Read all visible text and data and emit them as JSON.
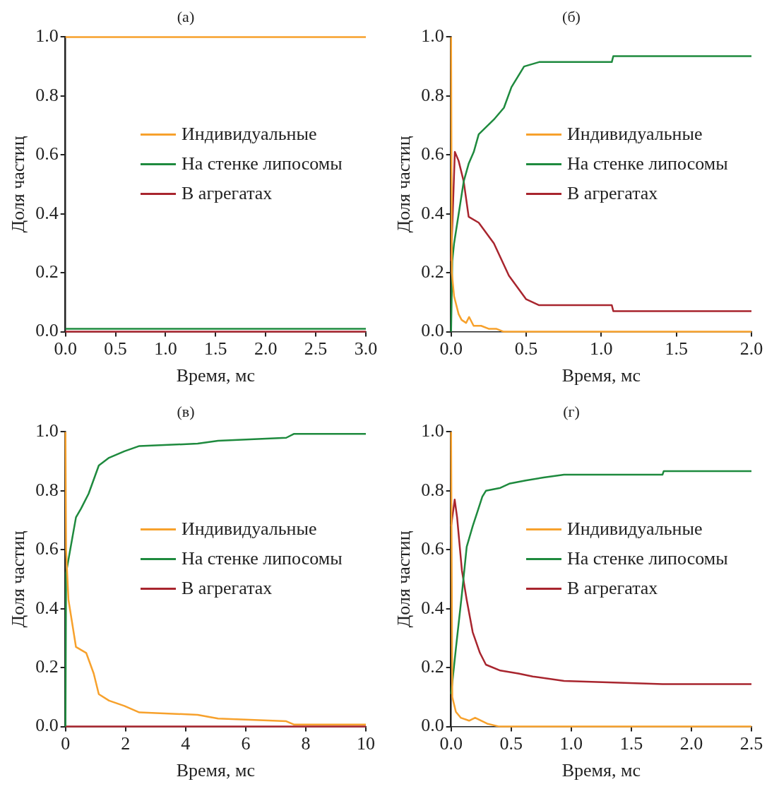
{
  "chart_data": [
    {
      "type": "line",
      "title": "(а)",
      "xlabel": "Время, мс",
      "ylabel": "Доля частиц",
      "xlim": [
        0,
        3
      ],
      "ylim": [
        0,
        1
      ],
      "xticks": [
        {
          "value": 0,
          "label": "0.0"
        },
        {
          "value": 0.5,
          "label": "0.5"
        },
        {
          "value": 1,
          "label": "1.0"
        },
        {
          "value": 1.5,
          "label": "1.5"
        },
        {
          "value": 2,
          "label": "2.0"
        },
        {
          "value": 2.5,
          "label": "2.5"
        },
        {
          "value": 3,
          "label": "3.0"
        }
      ],
      "yticks": [
        {
          "value": 0,
          "label": "0.0"
        },
        {
          "value": 0.2,
          "label": "0.2"
        },
        {
          "value": 0.4,
          "label": "0.4"
        },
        {
          "value": 0.6,
          "label": "0.6"
        },
        {
          "value": 0.8,
          "label": "0.8"
        },
        {
          "value": 1,
          "label": "1.0"
        }
      ],
      "grid": false,
      "legend": "right",
      "marker": "none",
      "line_style": "solid",
      "series": [
        {
          "name": "Индивидуальные",
          "color": "#f7a12c",
          "x": [
            0,
            3
          ],
          "values": [
            1,
            1
          ]
        },
        {
          "name": "На стенке липосомы",
          "color": "#1e8a3e",
          "x": [
            0,
            3
          ],
          "values": [
            0.01,
            0.01
          ]
        },
        {
          "name": "В агрегатах",
          "color": "#a8252e",
          "x": [
            0,
            3
          ],
          "values": [
            0,
            0
          ]
        }
      ]
    },
    {
      "type": "line",
      "title": "(б)",
      "xlabel": "Время, мс",
      "ylabel": "Доля частиц",
      "xlim": [
        0,
        2
      ],
      "ylim": [
        0,
        1
      ],
      "xticks": [
        {
          "value": 0,
          "label": "0.0"
        },
        {
          "value": 0.5,
          "label": "0.5"
        },
        {
          "value": 1,
          "label": "1.0"
        },
        {
          "value": 1.5,
          "label": "1.5"
        },
        {
          "value": 2,
          "label": "2.0"
        }
      ],
      "yticks": [
        {
          "value": 0,
          "label": "0.0"
        },
        {
          "value": 0.2,
          "label": "0.2"
        },
        {
          "value": 0.4,
          "label": "0.4"
        },
        {
          "value": 0.6,
          "label": "0.6"
        },
        {
          "value": 0.8,
          "label": "0.8"
        },
        {
          "value": 1,
          "label": "1.0"
        }
      ],
      "grid": false,
      "legend": "right",
      "marker": "none",
      "line_style": "solid",
      "series": [
        {
          "name": "Индивидуальные",
          "color": "#f7a12c",
          "x": [
            0,
            0.005,
            0.02,
            0.05,
            0.07,
            0.1,
            0.12,
            0.15,
            0.2,
            0.25,
            0.3,
            0.35,
            0.5,
            0.75,
            1.5,
            2
          ],
          "values": [
            1,
            0.2,
            0.12,
            0.06,
            0.04,
            0.03,
            0.05,
            0.02,
            0.02,
            0.01,
            0.01,
            0,
            0,
            0,
            0,
            0
          ]
        },
        {
          "name": "На стенке липосомы",
          "color": "#1e8a3e",
          "x": [
            0,
            0.008,
            0.02,
            0.084,
            0.117,
            0.151,
            0.184,
            0.285,
            0.352,
            0.402,
            0.486,
            0.586,
            1.07,
            1.08,
            2
          ],
          "values": [
            0,
            0.24,
            0.3,
            0.51,
            0.57,
            0.61,
            0.67,
            0.72,
            0.76,
            0.83,
            0.9,
            0.915,
            0.915,
            0.935,
            0.935
          ]
        },
        {
          "name": "В агрегатах",
          "color": "#a8252e",
          "x": [
            0,
            0.025,
            0.05,
            0.084,
            0.117,
            0.184,
            0.285,
            0.385,
            0.5,
            0.586,
            1.07,
            1.08,
            2
          ],
          "values": [
            0.24,
            0.61,
            0.58,
            0.51,
            0.39,
            0.37,
            0.3,
            0.19,
            0.11,
            0.09,
            0.09,
            0.07,
            0.07
          ]
        }
      ]
    },
    {
      "type": "line",
      "title": "(в)",
      "xlabel": "Время, мс",
      "ylabel": "Доля частиц",
      "xlim": [
        0,
        10
      ],
      "ylim": [
        0,
        1
      ],
      "xticks": [
        0,
        2,
        4,
        6,
        8,
        10
      ],
      "yticks": [
        {
          "value": 0,
          "label": "0.0"
        },
        {
          "value": 0.2,
          "label": "0.2"
        },
        {
          "value": 0.4,
          "label": "0.4"
        },
        {
          "value": 0.6,
          "label": "0.6"
        },
        {
          "value": 0.8,
          "label": "0.8"
        },
        {
          "value": 1,
          "label": "1.0"
        }
      ],
      "grid": false,
      "legend": "right",
      "marker": "none",
      "line_style": "solid",
      "series": [
        {
          "name": "Индивидуальные",
          "color": "#f7a12c",
          "x": [
            0,
            0.02,
            0.1,
            0.35,
            0.69,
            0.94,
            1.11,
            1.45,
            1.96,
            2.46,
            4.4,
            5.08,
            7.35,
            7.6,
            10
          ],
          "values": [
            1,
            0.6,
            0.43,
            0.27,
            0.25,
            0.18,
            0.11,
            0.088,
            0.07,
            0.048,
            0.04,
            0.027,
            0.018,
            0.007,
            0.007
          ]
        },
        {
          "name": "На стенке липосомы",
          "color": "#1e8a3e",
          "x": [
            0,
            0.02,
            0.14,
            0.35,
            0.52,
            0.77,
            1.11,
            1.45,
            1.96,
            2.46,
            4.4,
            5.08,
            7.35,
            7.6,
            10
          ],
          "values": [
            0,
            0.52,
            0.59,
            0.71,
            0.74,
            0.79,
            0.886,
            0.912,
            0.934,
            0.952,
            0.96,
            0.97,
            0.98,
            0.993,
            0.993
          ]
        },
        {
          "name": "В агрегатах",
          "color": "#a8252e",
          "x": [
            0,
            10
          ],
          "values": [
            0,
            0
          ]
        }
      ]
    },
    {
      "type": "line",
      "title": "(г)",
      "xlabel": "Время, мс",
      "ylabel": "Доля частиц",
      "xlim": [
        0,
        2.5
      ],
      "ylim": [
        0,
        1
      ],
      "xticks": [
        {
          "value": 0,
          "label": "0.0"
        },
        {
          "value": 0.5,
          "label": "0.5"
        },
        {
          "value": 1,
          "label": "1.0"
        },
        {
          "value": 1.5,
          "label": "1.5"
        },
        {
          "value": 2,
          "label": "2.0"
        },
        {
          "value": 2.5,
          "label": "2.5"
        }
      ],
      "yticks": [
        {
          "value": 0,
          "label": "0.0"
        },
        {
          "value": 0.2,
          "label": "0.2"
        },
        {
          "value": 0.4,
          "label": "0.4"
        },
        {
          "value": 0.6,
          "label": "0.6"
        },
        {
          "value": 0.8,
          "label": "0.8"
        },
        {
          "value": 1,
          "label": "1.0"
        }
      ],
      "grid": false,
      "legend": "right",
      "marker": "none",
      "line_style": "solid",
      "series": [
        {
          "name": "Индивидуальные",
          "color": "#f7a12c",
          "x": [
            0,
            0.01,
            0.04,
            0.08,
            0.15,
            0.2,
            0.3,
            0.4,
            0.6,
            1.2,
            2.5
          ],
          "values": [
            1,
            0.1,
            0.05,
            0.03,
            0.02,
            0.03,
            0.01,
            0,
            0,
            0,
            0
          ]
        },
        {
          "name": "На стенке липосомы",
          "color": "#1e8a3e",
          "x": [
            0,
            0.04,
            0.09,
            0.13,
            0.18,
            0.22,
            0.26,
            0.29,
            0.41,
            0.49,
            0.62,
            0.77,
            0.94,
            1.76,
            1.77,
            2.5
          ],
          "values": [
            0.11,
            0.265,
            0.45,
            0.61,
            0.68,
            0.73,
            0.78,
            0.8,
            0.81,
            0.825,
            0.835,
            0.845,
            0.855,
            0.855,
            0.867,
            0.867
          ]
        },
        {
          "name": "В агрегатах",
          "color": "#a8252e",
          "x": [
            0,
            0.03,
            0.05,
            0.09,
            0.13,
            0.18,
            0.24,
            0.29,
            0.41,
            0.56,
            0.68,
            0.94,
            1.76,
            2.5
          ],
          "values": [
            0.68,
            0.77,
            0.71,
            0.53,
            0.43,
            0.32,
            0.25,
            0.21,
            0.19,
            0.18,
            0.17,
            0.155,
            0.144,
            0.144
          ]
        }
      ]
    }
  ]
}
